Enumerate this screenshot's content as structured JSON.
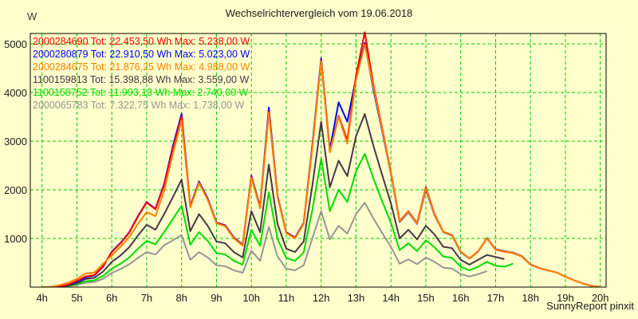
{
  "chart_data": {
    "type": "line",
    "title": "Wechselrichtervergleich vom 19.06.2018",
    "ylabel": "W",
    "xlabel": "",
    "footer": "SunnyReport pinxit",
    "grid": true,
    "legend_position": "top-left-inside",
    "ylim": [
      0,
      5240
    ],
    "xlim_hours": [
      4,
      20
    ],
    "colors": {
      "background": "#FFFFCC",
      "frame": "#000000",
      "gridline": "#00CC00"
    },
    "y_ticks": [
      {
        "value": 1000,
        "label": "1000"
      },
      {
        "value": 2000,
        "label": "2000"
      },
      {
        "value": 3000,
        "label": "3000"
      },
      {
        "value": 4000,
        "label": "4000"
      },
      {
        "value": 5000,
        "label": "5000"
      }
    ],
    "x_ticks": [
      {
        "hour": 4,
        "label": "4h"
      },
      {
        "hour": 5,
        "label": "5h"
      },
      {
        "hour": 6,
        "label": "6h"
      },
      {
        "hour": 7,
        "label": "7h"
      },
      {
        "hour": 8,
        "label": "8h"
      },
      {
        "hour": 9,
        "label": "9h"
      },
      {
        "hour": 10,
        "label": "10h"
      },
      {
        "hour": 11,
        "label": "11h"
      },
      {
        "hour": 12,
        "label": "12h"
      },
      {
        "hour": 13,
        "label": "13h"
      },
      {
        "hour": 14,
        "label": "14h"
      },
      {
        "hour": 15,
        "label": "15h"
      },
      {
        "hour": 16,
        "label": "16h"
      },
      {
        "hour": 17,
        "label": "17h"
      },
      {
        "hour": 18,
        "label": "18h"
      },
      {
        "hour": 19,
        "label": "19h"
      },
      {
        "hour": 20,
        "label": "20h"
      }
    ],
    "x_hours": [
      4,
      4.25,
      4.5,
      4.75,
      5,
      5.25,
      5.5,
      5.75,
      6,
      6.25,
      6.5,
      6.75,
      7,
      7.25,
      7.5,
      7.75,
      8,
      8.25,
      8.5,
      8.75,
      9,
      9.25,
      9.5,
      9.75,
      10,
      10.25,
      10.5,
      10.75,
      11,
      11.25,
      11.5,
      11.75,
      12,
      12.25,
      12.5,
      12.75,
      13,
      13.25,
      13.5,
      13.75,
      14,
      14.25,
      14.5,
      14.75,
      15,
      15.25,
      15.5,
      15.75,
      16,
      16.25,
      16.5,
      16.75,
      17,
      17.25,
      17.5,
      17.75,
      18,
      18.25,
      18.5,
      18.75,
      19,
      19.25,
      19.5,
      19.75,
      20
    ],
    "series": [
      {
        "label": "2000284690 Tot: 22.453,50 Wh Max: 5.238,00 W",
        "serial": "2000284690",
        "total_wh": "22.453,50",
        "max_w": "5.238,00",
        "color": "#FF0000",
        "values": [
          0,
          0,
          10,
          50,
          130,
          220,
          250,
          430,
          720,
          900,
          1120,
          1450,
          1740,
          1600,
          2100,
          2850,
          3510,
          1650,
          2150,
          1800,
          1320,
          1260,
          1010,
          860,
          2270,
          1630,
          3610,
          1860,
          1120,
          1010,
          1310,
          2900,
          4660,
          2780,
          3520,
          3020,
          4350,
          5238,
          4150,
          3260,
          2360,
          1360,
          1560,
          1320,
          2050,
          1500,
          1140,
          1070,
          730,
          590,
          740,
          1000,
          770,
          730,
          700,
          630,
          460,
          390,
          345,
          300,
          215,
          140,
          75,
          25,
          5
        ]
      },
      {
        "label": "2000280879 Tot: 22.910,50 Wh Max: 5.023,00 W",
        "serial": "2000280879",
        "total_wh": "22.910,50",
        "max_w": "5.023,00",
        "color": "#0000FF",
        "values": [
          0,
          0,
          10,
          45,
          110,
          200,
          240,
          420,
          730,
          910,
          1130,
          1460,
          1750,
          1610,
          2120,
          2900,
          3560,
          1670,
          2170,
          1820,
          1330,
          1270,
          1020,
          870,
          2290,
          1650,
          3690,
          1880,
          1130,
          1020,
          1320,
          2950,
          4700,
          2820,
          3800,
          3400,
          4300,
          5023,
          4050,
          3200,
          2330,
          1340,
          1540,
          1300,
          2000,
          1480,
          1130,
          1060,
          720,
          585,
          730,
          1010,
          780,
          740,
          710,
          640,
          465,
          395,
          340,
          null,
          null,
          null,
          null,
          null,
          null
        ]
      },
      {
        "label": "2000284675 Tot: 21.876,25 Wh Max: 4.988,00 W",
        "serial": "2000284675",
        "total_wh": "21.876,25",
        "max_w": "4.988,00",
        "color": "#FF8000",
        "values": [
          0,
          5,
          40,
          90,
          170,
          280,
          300,
          480,
          650,
          830,
          1030,
          1300,
          1540,
          1460,
          1980,
          2750,
          3430,
          1640,
          2140,
          1790,
          1310,
          1250,
          1000,
          850,
          2250,
          1620,
          3580,
          1850,
          1110,
          1000,
          1300,
          2880,
          4640,
          2770,
          3500,
          2950,
          4250,
          4988,
          4100,
          3230,
          2340,
          1350,
          1550,
          1310,
          2020,
          1490,
          1135,
          1065,
          725,
          588,
          735,
          1005,
          775,
          735,
          705,
          635,
          462,
          392,
          342,
          298,
          212,
          138,
          72,
          22,
          5
        ]
      },
      {
        "label": "1100159813 Tot: 15.398,88 Wh Max: 3.559,00 W",
        "serial": "1100159813",
        "total_wh": "15.398,88",
        "max_w": "3.559,00",
        "color": "#473747",
        "values": [
          0,
          0,
          10,
          35,
          80,
          165,
          190,
          320,
          520,
          650,
          820,
          1060,
          1280,
          1180,
          1500,
          1850,
          2210,
          1150,
          1500,
          1260,
          940,
          900,
          720,
          610,
          1560,
          1130,
          2520,
          1300,
          790,
          720,
          940,
          2100,
          3400,
          2050,
          2600,
          2280,
          3100,
          3559,
          2900,
          2300,
          1720,
          1000,
          1180,
          980,
          1260,
          1080,
          830,
          800,
          560,
          460,
          560,
          660,
          620,
          575,
          null,
          null,
          null,
          null,
          null,
          null,
          null,
          null,
          null,
          null,
          null
        ]
      },
      {
        "label": "1100158752 Tot: 11.993,13 Wh Max: 2.740,00 W",
        "serial": "1100158752",
        "total_wh": "11.993,13",
        "max_w": "2.740,00",
        "color": "#00DC00",
        "values": [
          0,
          0,
          5,
          25,
          60,
          120,
          140,
          230,
          380,
          480,
          610,
          790,
          950,
          880,
          1130,
          1400,
          1670,
          870,
          1130,
          950,
          700,
          670,
          540,
          460,
          1180,
          850,
          1950,
          990,
          600,
          540,
          710,
          1600,
          2640,
          1560,
          2000,
          1750,
          2380,
          2740,
          2230,
          1760,
          1320,
          760,
          900,
          740,
          960,
          820,
          630,
          600,
          420,
          345,
          420,
          520,
          440,
          420,
          480,
          null,
          null,
          null,
          null,
          null,
          null,
          null,
          null,
          null,
          null
        ]
      },
      {
        "label": "2000065783 Tot: 7.322,75 Wh Max: 1.738,00 W",
        "serial": "2000065783",
        "total_wh": "7.322,75",
        "max_w": "1.738,00",
        "color": "#969696",
        "values": [
          0,
          0,
          5,
          18,
          45,
          90,
          105,
          170,
          290,
          370,
          470,
          600,
          720,
          670,
          860,
          960,
          1070,
          560,
          720,
          610,
          450,
          430,
          345,
          295,
          750,
          540,
          1240,
          630,
          380,
          345,
          450,
          1010,
          1560,
          980,
          1260,
          1100,
          1500,
          1738,
          1410,
          1110,
          830,
          480,
          570,
          470,
          610,
          520,
          400,
          380,
          265,
          220,
          265,
          330,
          null,
          null,
          null,
          null,
          null,
          null,
          null,
          null,
          null,
          null,
          null,
          null,
          null
        ]
      }
    ]
  }
}
